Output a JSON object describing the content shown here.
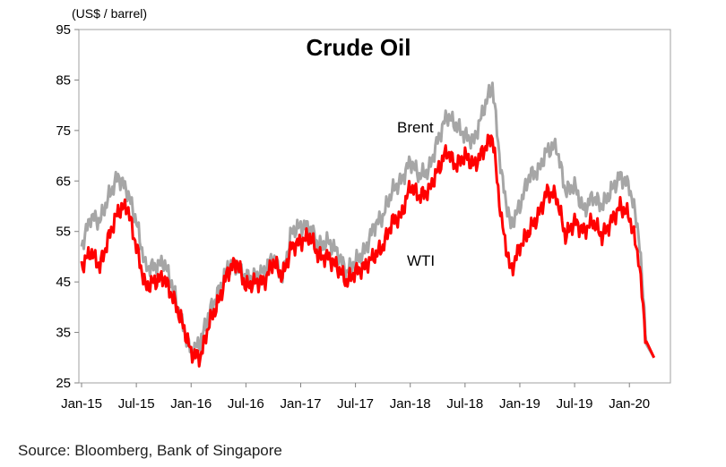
{
  "chart_data": {
    "type": "line",
    "title": "Crude Oil",
    "ylabel": "(US$ / barrel)",
    "ylim": [
      25,
      95
    ],
    "yticks": [
      25,
      35,
      45,
      55,
      65,
      75,
      85,
      95
    ],
    "xticks": [
      "Jan-15",
      "Jul-15",
      "Jan-16",
      "Jul-16",
      "Jan-17",
      "Jul-17",
      "Jan-18",
      "Jul-18",
      "Jan-19",
      "Jul-19",
      "Jan-20"
    ],
    "x": [
      "2015-01",
      "2015-02",
      "2015-03",
      "2015-04",
      "2015-05",
      "2015-06",
      "2015-07",
      "2015-08",
      "2015-09",
      "2015-10",
      "2015-11",
      "2015-12",
      "2016-01",
      "2016-02",
      "2016-03",
      "2016-04",
      "2016-05",
      "2016-06",
      "2016-07",
      "2016-08",
      "2016-09",
      "2016-10",
      "2016-11",
      "2016-12",
      "2017-01",
      "2017-02",
      "2017-03",
      "2017-04",
      "2017-05",
      "2017-06",
      "2017-07",
      "2017-08",
      "2017-09",
      "2017-10",
      "2017-11",
      "2017-12",
      "2018-01",
      "2018-02",
      "2018-03",
      "2018-04",
      "2018-05",
      "2018-06",
      "2018-07",
      "2018-08",
      "2018-09",
      "2018-10",
      "2018-11",
      "2018-12",
      "2019-01",
      "2019-02",
      "2019-03",
      "2019-04",
      "2019-05",
      "2019-06",
      "2019-07",
      "2019-08",
      "2019-09",
      "2019-10",
      "2019-11",
      "2019-12",
      "2020-01",
      "2020-02",
      "2020-03"
    ],
    "series": [
      {
        "name": "Brent",
        "color": "#a6a6a6",
        "values": [
          52,
          58,
          57,
          62,
          66,
          63,
          57,
          48,
          48,
          49,
          44,
          37,
          31,
          33,
          39,
          43,
          48,
          48,
          46,
          46,
          47,
          50,
          46,
          55,
          56,
          56,
          52,
          53,
          51,
          47,
          49,
          51,
          56,
          58,
          63,
          65,
          69,
          66,
          67,
          73,
          78,
          76,
          74,
          73,
          79,
          84,
          66,
          56,
          60,
          66,
          67,
          71,
          72,
          63,
          64,
          59,
          62,
          60,
          63,
          66,
          64,
          55,
          30
        ]
      },
      {
        "name": "WTI",
        "color": "#ff0000",
        "values": [
          48,
          51,
          48,
          54,
          59,
          60,
          52,
          44,
          45,
          46,
          42,
          37,
          31,
          30,
          37,
          41,
          47,
          49,
          44,
          45,
          45,
          49,
          46,
          52,
          53,
          54,
          50,
          50,
          48,
          45,
          47,
          48,
          50,
          52,
          57,
          58,
          64,
          62,
          63,
          67,
          71,
          68,
          70,
          68,
          71,
          74,
          57,
          47,
          52,
          55,
          58,
          63,
          62,
          54,
          57,
          55,
          57,
          54,
          57,
          60,
          58,
          50,
          30
        ]
      }
    ],
    "legend": "inline labels"
  },
  "source": "Source: Bloomberg, Bank of Singapore"
}
